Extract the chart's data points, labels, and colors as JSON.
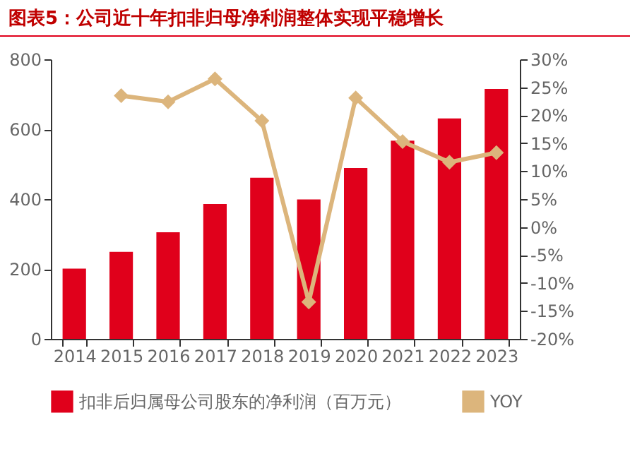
{
  "chart_data": {
    "type": "bar",
    "title": "图表5：公司近十年扣非归母净利润整体实现平稳增长",
    "categories": [
      "2014",
      "2015",
      "2016",
      "2017",
      "2018",
      "2019",
      "2020",
      "2021",
      "2022",
      "2023"
    ],
    "series": [
      {
        "name": "扣非后归属母公司股东的净利润（百万元）",
        "color": "#e0001b",
        "values": [
          201,
          249,
          305,
          386,
          461,
          399,
          489,
          567,
          631,
          715
        ]
      },
      {
        "name": "YOY",
        "type": "line",
        "axis": "y2",
        "color": "#dcb57c",
        "marker": "diamond",
        "line_style": "solid",
        "values": [
          null,
          23.5,
          22.4,
          26.5,
          19.0,
          -13.4,
          23.1,
          15.3,
          11.6,
          13.3
        ]
      }
    ],
    "ylim": [
      0,
      800
    ],
    "yticks": [
      0,
      200,
      400,
      600,
      800
    ],
    "y2lim": [
      -20,
      30
    ],
    "y2ticks": [
      {
        "value": -20,
        "label": "-20%"
      },
      {
        "value": -15,
        "label": "-15%"
      },
      {
        "value": -10,
        "label": "-10%"
      },
      {
        "value": -5,
        "label": "-5%"
      },
      {
        "value": 0,
        "label": "0%"
      },
      {
        "value": 5,
        "label": "5%"
      },
      {
        "value": 10,
        "label": "10%"
      },
      {
        "value": 15,
        "label": "15%"
      },
      {
        "value": 20,
        "label": "20%"
      },
      {
        "value": 25,
        "label": "25%"
      },
      {
        "value": 30,
        "label": "30%"
      }
    ],
    "grid": false,
    "legend": "bottom"
  }
}
